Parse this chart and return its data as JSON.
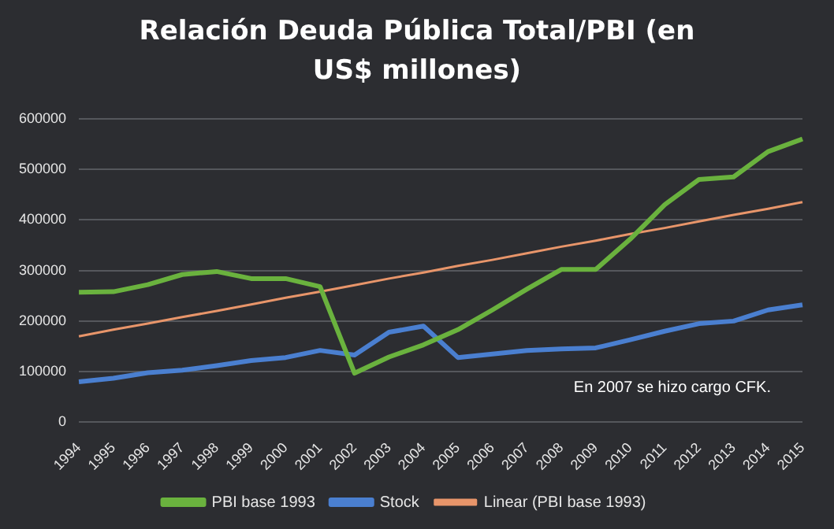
{
  "chart_data": {
    "type": "line",
    "title": "Relación Deuda Pública Total/PBI (en US$ millones)",
    "categories": [
      "1994",
      "1995",
      "1996",
      "1997",
      "1998",
      "1999",
      "2000",
      "2001",
      "2002",
      "2003",
      "2004",
      "2005",
      "2006",
      "2007",
      "2008",
      "2009",
      "2010",
      "2011",
      "2012",
      "2013",
      "2014",
      "2015"
    ],
    "series": [
      {
        "name": "PBI base 1993",
        "color": "#6ab23e",
        "values": [
          257000,
          258000,
          272000,
          292000,
          298000,
          284000,
          284000,
          268000,
          97000,
          129000,
          153000,
          183000,
          222000,
          263000,
          302000,
          302000,
          362000,
          430000,
          480000,
          485000,
          535000,
          560000
        ]
      },
      {
        "name": "Stock",
        "color": "#4a7fd0",
        "values": [
          80000,
          87000,
          98000,
          103000,
          112000,
          122000,
          128000,
          142000,
          133000,
          178000,
          190000,
          128000,
          135000,
          142000,
          145000,
          147000,
          163000,
          180000,
          195000,
          200000,
          222000,
          232000
        ]
      },
      {
        "name": "Linear (PBI base 1993)",
        "color": "#e8956a",
        "values": [
          170000,
          183000,
          195000,
          208000,
          220000,
          233000,
          246000,
          258000,
          271000,
          284000,
          296000,
          309000,
          321000,
          334000,
          347000,
          359000,
          372000,
          384000,
          397000,
          410000,
          422000,
          435000
        ]
      }
    ],
    "ylim": [
      0,
      600000
    ],
    "yticks": [
      0,
      100000,
      200000,
      300000,
      400000,
      500000,
      600000
    ],
    "grid": "y",
    "legend": "bottom",
    "marker": "none",
    "line_style": "solid",
    "annotations": [
      "En 2007 se hizo cargo CFK."
    ]
  }
}
